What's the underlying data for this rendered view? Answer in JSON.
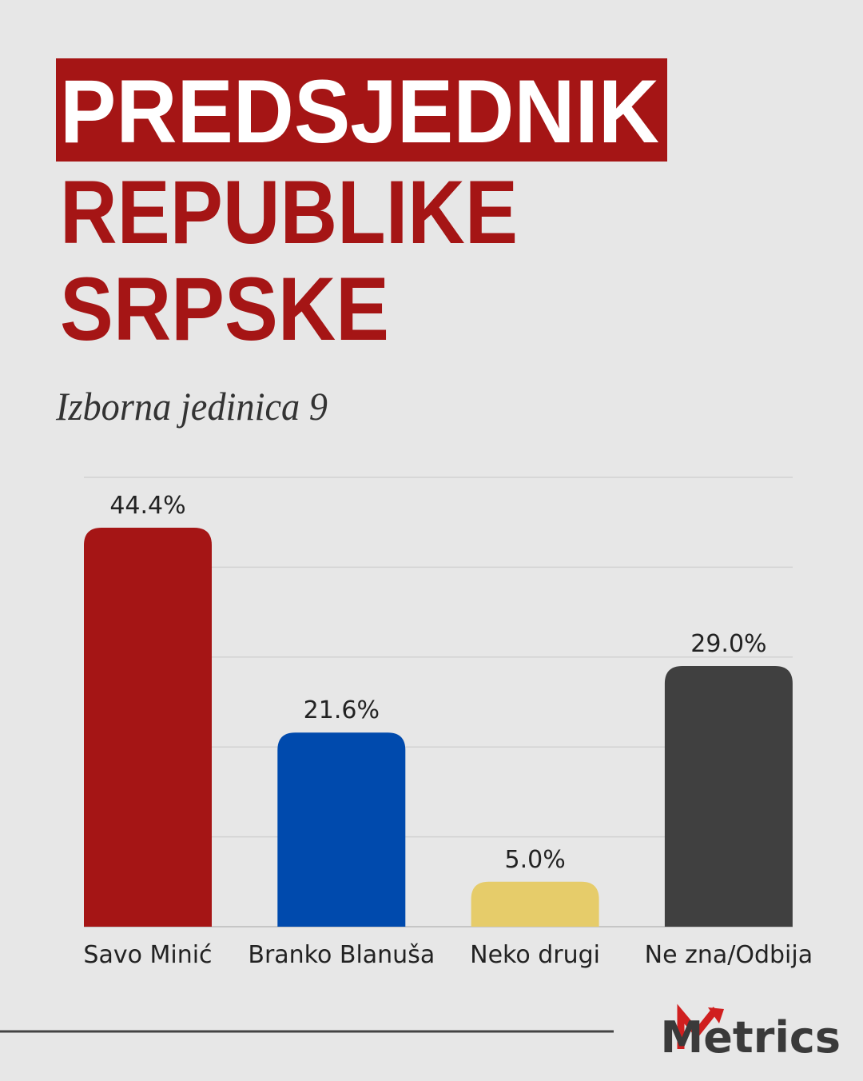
{
  "chart_data": {
    "type": "bar",
    "title_lines": [
      "PREDSJEDNIK",
      "REPUBLIKE",
      "SRPSKE"
    ],
    "subtitle": "Izborna jedinica 9",
    "categories": [
      "Savo Minić",
      "Branko Blanuša",
      "Neko drugi",
      "Ne zna/Odbija"
    ],
    "values": [
      44.4,
      21.6,
      5.0,
      29.0
    ],
    "value_labels": [
      "44.4%",
      "21.6%",
      "5.0%",
      "29.0%"
    ],
    "colors": [
      "#a51515",
      "#004aad",
      "#e6cc6a",
      "#404040"
    ],
    "ylim": [
      0,
      50
    ],
    "yticks": [
      0,
      10,
      20,
      30,
      40,
      50
    ],
    "grid": true,
    "logo": "Metrics"
  }
}
